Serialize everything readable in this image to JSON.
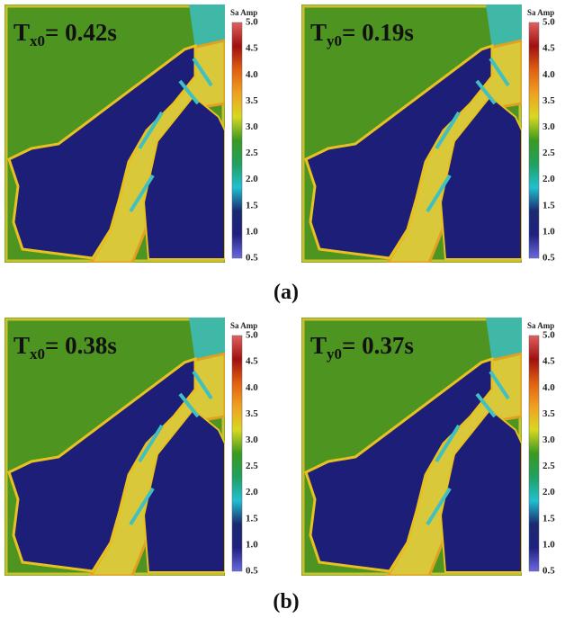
{
  "panels": [
    {
      "symbol": "T",
      "subscript": "x0",
      "value": "= 0.42s"
    },
    {
      "symbol": "T",
      "subscript": "y0",
      "value": "= 0.19s"
    },
    {
      "symbol": "T",
      "subscript": "x0",
      "value": "= 0.38s"
    },
    {
      "symbol": "T",
      "subscript": "y0",
      "value": "= 0.37s"
    }
  ],
  "colorbar": {
    "title": "Sa Amp",
    "ticks": [
      "5.0",
      "4.5",
      "4.0",
      "3.5",
      "3.0",
      "2.5",
      "2.0",
      "1.5",
      "1.0",
      "0.5"
    ]
  },
  "captions": [
    "(a)",
    "(b)"
  ]
}
